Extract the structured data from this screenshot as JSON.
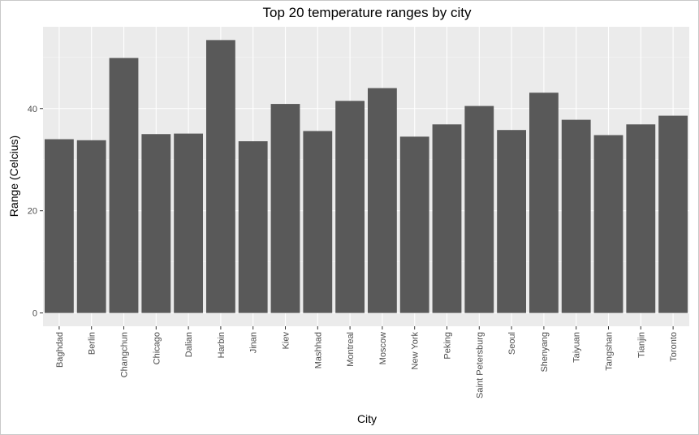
{
  "chart_data": {
    "type": "bar",
    "title": "Top 20 temperature ranges by city",
    "xlabel": "City",
    "ylabel": "Range (Celcius)",
    "categories": [
      "Baghdad",
      "Berlin",
      "Changchun",
      "Chicago",
      "Dalian",
      "Harbin",
      "Jinan",
      "Kiev",
      "Mashhad",
      "Montreal",
      "Moscow",
      "New York",
      "Peking",
      "Saint Petersburg",
      "Seoul",
      "Shenyang",
      "Taiyuan",
      "Tangshan",
      "Tianjin",
      "Toronto"
    ],
    "values": [
      34.0,
      33.8,
      49.9,
      35.0,
      35.1,
      53.4,
      33.6,
      40.9,
      35.6,
      41.5,
      44.0,
      34.5,
      36.9,
      40.5,
      35.8,
      43.1,
      37.8,
      34.8,
      36.9,
      38.6
    ],
    "ylim": [
      -2.6,
      56.0
    ],
    "yticks": [
      0,
      20,
      40
    ],
    "grid": true,
    "colors": {
      "bar": "#595959",
      "panel": "#ebebeb",
      "gridMajor": "#ffffff",
      "gridMinor": "#f5f5f5",
      "tickText": "#4d4d4d",
      "tickMark": "#333333"
    }
  }
}
